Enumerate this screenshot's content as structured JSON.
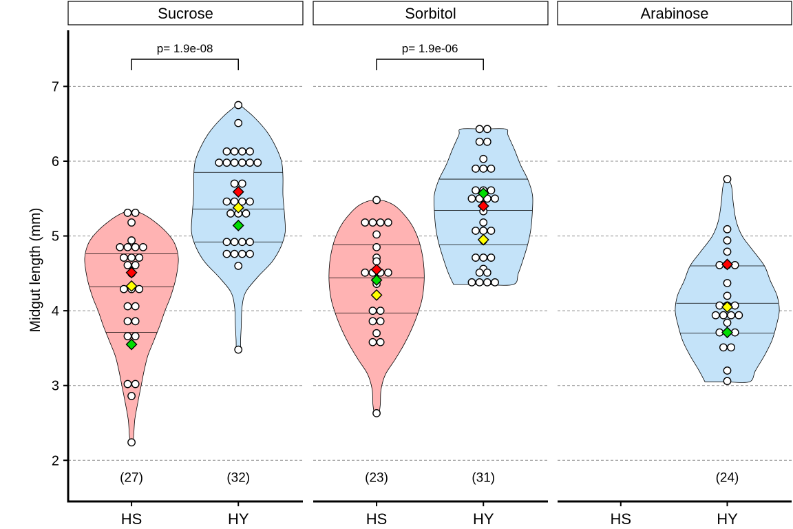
{
  "chart_data": {
    "type": "violin",
    "ylabel": "Midgut length (mm)",
    "ylim": [
      1.45,
      7.75
    ],
    "yticks": [
      2,
      3,
      4,
      5,
      6,
      7
    ],
    "grid": "major y, dashed",
    "colors": {
      "HS": "#FFB3B3",
      "HY": "#C4E3F9",
      "mean": "#FF0000",
      "median": "#FFFF00",
      "mode": "#00DD00"
    },
    "facets": [
      {
        "label": "Sucrose",
        "categories": [
          "HS",
          "HY"
        ],
        "pvalue": "p= 1.9e-08",
        "groups": [
          {
            "category": "HS",
            "n_label": "(27)",
            "n": 27,
            "quantiles": [
              3.71,
              4.32,
              4.76
            ],
            "markers": [
              {
                "color": "#FF0000",
                "value": 4.51
              },
              {
                "color": "#FFFF00",
                "value": 4.33
              },
              {
                "color": "#00DD00",
                "value": 3.55
              }
            ],
            "points": [
              5.31,
              5.31,
              5.18,
              4.94,
              4.85,
              4.85,
              4.85,
              4.85,
              4.71,
              4.71,
              4.71,
              4.61,
              4.61,
              4.5,
              4.29,
              4.29,
              4.29,
              4.06,
              4.06,
              3.86,
              3.86,
              3.66,
              3.66,
              3.02,
              3.02,
              2.86,
              2.24
            ],
            "violin": [
              [
                2.24,
                0.02
              ],
              [
                2.35,
                0.03
              ],
              [
                2.55,
                0.045
              ],
              [
                2.8,
                0.09
              ],
              [
                3.0,
                0.13
              ],
              [
                3.2,
                0.17
              ],
              [
                3.4,
                0.22
              ],
              [
                3.6,
                0.3
              ],
              [
                3.8,
                0.38
              ],
              [
                4.0,
                0.45
              ],
              [
                4.2,
                0.53
              ],
              [
                4.45,
                0.6
              ],
              [
                4.7,
                0.63
              ],
              [
                4.9,
                0.58
              ],
              [
                5.05,
                0.47
              ],
              [
                5.2,
                0.3
              ],
              [
                5.3,
                0.14
              ],
              [
                5.33,
                0.04
              ]
            ]
          },
          {
            "category": "HY",
            "n_label": "(32)",
            "n": 32,
            "quantiles": [
              4.92,
              5.36,
              5.85
            ],
            "markers": [
              {
                "color": "#FF0000",
                "value": 5.59
              },
              {
                "color": "#FFFF00",
                "value": 5.38
              },
              {
                "color": "#00DD00",
                "value": 5.14
              }
            ],
            "points": [
              6.75,
              6.51,
              6.13,
              6.13,
              6.13,
              6.13,
              5.98,
              5.98,
              5.98,
              5.98,
              5.98,
              5.98,
              5.7,
              5.7,
              5.46,
              5.46,
              5.46,
              5.46,
              5.3,
              5.3,
              5.3,
              5.14,
              4.92,
              4.92,
              4.92,
              4.92,
              4.76,
              4.76,
              4.76,
              4.76,
              4.6,
              3.48
            ],
            "violin": [
              [
                3.47,
                0.03
              ],
              [
                3.6,
                0.03
              ],
              [
                3.8,
                0.04
              ],
              [
                4.05,
                0.05
              ],
              [
                4.25,
                0.1
              ],
              [
                4.45,
                0.26
              ],
              [
                4.65,
                0.45
              ],
              [
                4.85,
                0.57
              ],
              [
                5.05,
                0.63
              ],
              [
                5.3,
                0.62
              ],
              [
                5.55,
                0.6
              ],
              [
                5.8,
                0.6
              ],
              [
                6.0,
                0.58
              ],
              [
                6.2,
                0.5
              ],
              [
                6.4,
                0.38
              ],
              [
                6.6,
                0.2
              ],
              [
                6.72,
                0.06
              ],
              [
                6.76,
                0.02
              ]
            ]
          }
        ]
      },
      {
        "label": "Sorbitol",
        "categories": [
          "HS",
          "HY"
        ],
        "pvalue": "p= 1.9e-06",
        "groups": [
          {
            "category": "HS",
            "n_label": "(23)",
            "n": 23,
            "quantiles": [
              3.97,
              4.44,
              4.88
            ],
            "markers": [
              {
                "color": "#FF0000",
                "value": 4.55
              },
              {
                "color": "#00DD00",
                "value": 4.41
              },
              {
                "color": "#FFFF00",
                "value": 4.21
              }
            ],
            "points": [
              5.48,
              5.18,
              5.18,
              5.18,
              5.18,
              5.02,
              4.85,
              4.71,
              4.51,
              4.51,
              4.51,
              4.51,
              4.36,
              4.21,
              4.0,
              4.0,
              3.86,
              3.86,
              3.7,
              3.58,
              3.58,
              2.63,
              4.66
            ],
            "violin": [
              [
                2.62,
                0.03
              ],
              [
                2.75,
                0.05
              ],
              [
                2.95,
                0.06
              ],
              [
                3.15,
                0.12
              ],
              [
                3.35,
                0.25
              ],
              [
                3.55,
                0.37
              ],
              [
                3.75,
                0.47
              ],
              [
                3.95,
                0.55
              ],
              [
                4.15,
                0.61
              ],
              [
                4.4,
                0.64
              ],
              [
                4.65,
                0.63
              ],
              [
                4.9,
                0.58
              ],
              [
                5.1,
                0.5
              ],
              [
                5.25,
                0.4
              ],
              [
                5.4,
                0.25
              ],
              [
                5.47,
                0.1
              ]
            ]
          },
          {
            "category": "HY",
            "n_label": "(31)",
            "n": 31,
            "quantiles": [
              4.88,
              5.34,
              5.76
            ],
            "markers": [
              {
                "color": "#00DD00",
                "value": 5.57
              },
              {
                "color": "#FF0000",
                "value": 5.4
              },
              {
                "color": "#FFFF00",
                "value": 4.95
              }
            ],
            "points": [
              6.43,
              6.43,
              6.26,
              6.26,
              6.03,
              5.9,
              5.9,
              5.9,
              5.61,
              5.61,
              5.61,
              5.5,
              5.5,
              5.5,
              5.5,
              5.33,
              5.18,
              5.07,
              5.07,
              5.07,
              4.94,
              4.71,
              4.71,
              4.71,
              4.56,
              4.51,
              4.51,
              4.38,
              4.38,
              4.38,
              4.38
            ],
            "violin": [
              [
                4.35,
                0.4
              ],
              [
                4.5,
                0.47
              ],
              [
                4.7,
                0.54
              ],
              [
                4.9,
                0.6
              ],
              [
                5.1,
                0.64
              ],
              [
                5.35,
                0.66
              ],
              [
                5.55,
                0.66
              ],
              [
                5.75,
                0.6
              ],
              [
                5.95,
                0.5
              ],
              [
                6.15,
                0.42
              ],
              [
                6.35,
                0.33
              ],
              [
                6.43,
                0.3
              ]
            ]
          }
        ]
      },
      {
        "label": "Arabinose",
        "categories": [
          "HS",
          "HY"
        ],
        "pvalue": "",
        "groups": [
          {
            "category": "HY",
            "n_label": "(24)",
            "n": 24,
            "quantiles": [
              3.7,
              4.1,
              4.6
            ],
            "markers": [
              {
                "color": "#FF0000",
                "value": 4.62
              },
              {
                "color": "#FFFF00",
                "value": 4.05
              },
              {
                "color": "#00DD00",
                "value": 3.71
              }
            ],
            "points": [
              5.76,
              5.09,
              4.94,
              4.79,
              4.61,
              4.61,
              4.61,
              4.37,
              4.2,
              4.07,
              4.07,
              4.07,
              3.94,
              3.94,
              3.94,
              3.94,
              3.84,
              3.71,
              3.71,
              3.71,
              3.51,
              3.51,
              3.2,
              3.06
            ],
            "violin": [
              [
                3.05,
                0.3
              ],
              [
                3.2,
                0.38
              ],
              [
                3.4,
                0.5
              ],
              [
                3.6,
                0.6
              ],
              [
                3.8,
                0.66
              ],
              [
                4.0,
                0.7
              ],
              [
                4.2,
                0.67
              ],
              [
                4.4,
                0.58
              ],
              [
                4.6,
                0.5
              ],
              [
                4.8,
                0.35
              ],
              [
                5.0,
                0.2
              ],
              [
                5.2,
                0.12
              ],
              [
                5.45,
                0.08
              ],
              [
                5.65,
                0.06
              ],
              [
                5.76,
                0.02
              ]
            ]
          }
        ]
      }
    ]
  }
}
